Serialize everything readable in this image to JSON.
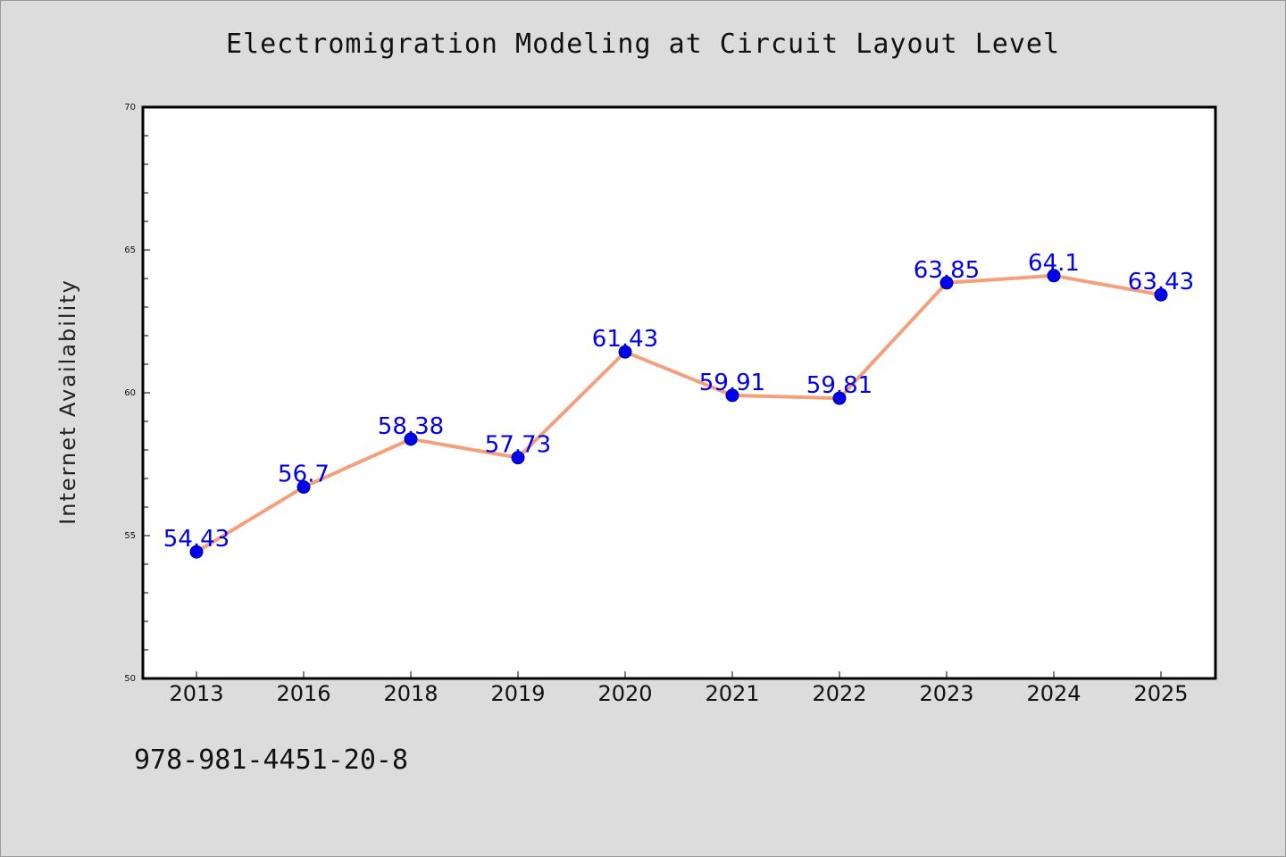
{
  "chart_data": {
    "type": "line",
    "title": "Electromigration Modeling at Circuit Layout Level",
    "xlabel": "",
    "ylabel": "Internet Availability",
    "categories": [
      "2013",
      "2016",
      "2018",
      "2019",
      "2020",
      "2021",
      "2022",
      "2023",
      "2024",
      "2025"
    ],
    "values": [
      54.43,
      56.7,
      58.38,
      57.73,
      61.43,
      59.91,
      59.81,
      63.85,
      64.1,
      63.43
    ],
    "data_labels": [
      "54.43",
      "56.7",
      "58.38",
      "57.73",
      "61.43",
      "59.91",
      "59.81",
      "63.85",
      "64.1",
      "63.43"
    ],
    "ylim": [
      50,
      70
    ],
    "yticks": [
      50,
      55,
      60,
      65,
      70
    ],
    "ytick_labels": [
      "50",
      "55",
      "60",
      "65",
      "70"
    ],
    "grid": false,
    "line_color": "#f4a07c",
    "marker_color": "#0000ee",
    "label_color": "#0000ee"
  },
  "footer": {
    "isbn": "978-981-4451-20-8"
  }
}
